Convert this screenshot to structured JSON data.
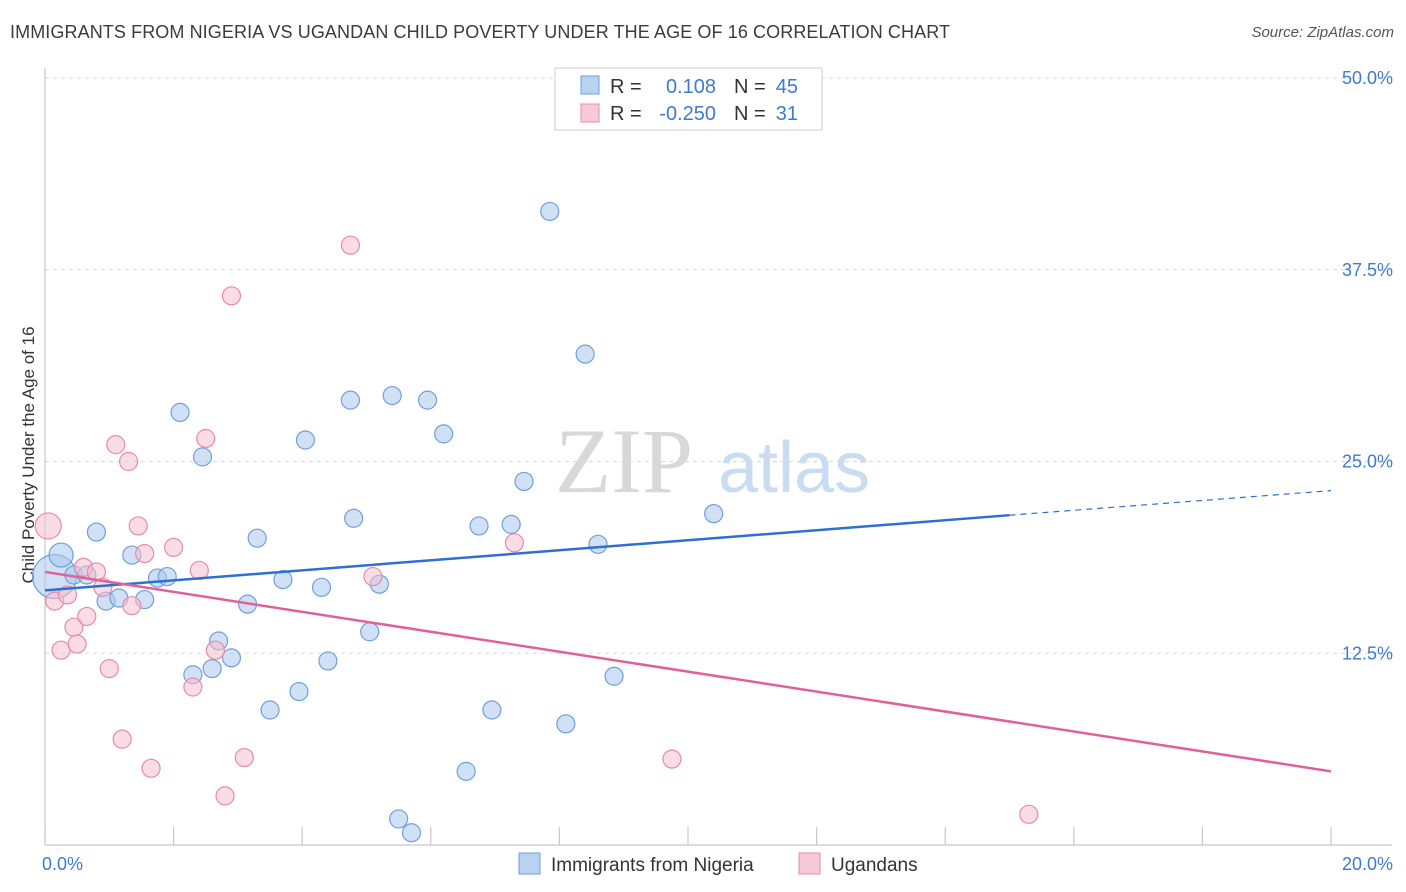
{
  "title": "IMMIGRANTS FROM NIGERIA VS UGANDAN CHILD POVERTY UNDER THE AGE OF 16 CORRELATION CHART",
  "source": "Source: ZipAtlas.com",
  "watermark": {
    "zip": "ZIP",
    "atlas": "atlas"
  },
  "legend": {
    "rows": [
      {
        "r_label": "R =",
        "r_value": "0.108",
        "n_label": "N =",
        "n_value": "45"
      },
      {
        "r_label": "R =",
        "r_value": "-0.250",
        "n_label": "N =",
        "n_value": "31"
      }
    ]
  },
  "colors": {
    "blue_fill": "#a9c8ef",
    "blue_stroke": "#6f9fdc",
    "blue_line": "#2f6fd0",
    "pink_fill": "#f6bfd0",
    "pink_stroke": "#e88aa9",
    "pink_line": "#e0609a",
    "axis_text": "#3f7ad0",
    "grid": "#d8d8d8"
  },
  "chart_data": {
    "type": "scatter",
    "title": "IMMIGRANTS FROM NIGERIA VS UGANDAN CHILD POVERTY UNDER THE AGE OF 16 CORRELATION CHART",
    "xlabel": "",
    "ylabel": "Child Poverty Under the Age of 16",
    "xlim": [
      0,
      20
    ],
    "ylim": [
      0,
      50
    ],
    "x_tick_labels": [
      "0.0%",
      "20.0%"
    ],
    "y_ticks": [
      12.5,
      25.0,
      37.5,
      50.0
    ],
    "y_tick_labels": [
      "12.5%",
      "25.0%",
      "37.5%",
      "50.0%"
    ],
    "series": [
      {
        "name": "Immigrants from Nigeria",
        "color": "blue",
        "R": 0.108,
        "N": 45,
        "trend": {
          "x0": 0,
          "y0": 16.6,
          "x1": 15.0,
          "y1": 21.5,
          "dash_to_x": 20.0,
          "dash_to_y": 23.1
        },
        "points": [
          [
            0.15,
            17.5,
            22
          ],
          [
            0.25,
            18.9,
            12
          ],
          [
            0.45,
            17.6,
            9
          ],
          [
            0.65,
            17.6,
            9
          ],
          [
            0.8,
            20.4,
            9
          ],
          [
            0.95,
            15.9,
            9
          ],
          [
            1.15,
            16.1,
            9
          ],
          [
            1.35,
            18.9,
            9
          ],
          [
            1.55,
            16.0,
            9
          ],
          [
            1.75,
            17.4,
            9
          ],
          [
            1.9,
            17.5,
            9
          ],
          [
            2.1,
            28.2,
            9
          ],
          [
            2.3,
            11.1,
            9
          ],
          [
            2.45,
            25.3,
            9
          ],
          [
            2.6,
            11.5,
            9
          ],
          [
            2.7,
            13.3,
            9
          ],
          [
            2.9,
            12.2,
            9
          ],
          [
            3.15,
            15.7,
            9
          ],
          [
            3.3,
            20.0,
            9
          ],
          [
            3.5,
            8.8,
            9
          ],
          [
            3.7,
            17.3,
            9
          ],
          [
            3.95,
            10.0,
            9
          ],
          [
            4.05,
            26.4,
            9
          ],
          [
            4.3,
            16.8,
            9
          ],
          [
            4.4,
            12.0,
            9
          ],
          [
            4.75,
            29.0,
            9
          ],
          [
            4.8,
            21.3,
            9
          ],
          [
            5.05,
            13.9,
            9
          ],
          [
            5.2,
            17.0,
            9
          ],
          [
            5.4,
            29.3,
            9
          ],
          [
            5.5,
            1.7,
            9
          ],
          [
            5.7,
            0.8,
            9
          ],
          [
            5.95,
            29.0,
            9
          ],
          [
            6.2,
            26.8,
            9
          ],
          [
            6.55,
            4.8,
            9
          ],
          [
            6.75,
            20.8,
            9
          ],
          [
            6.95,
            8.8,
            9
          ],
          [
            7.25,
            20.9,
            9
          ],
          [
            7.45,
            23.7,
            9
          ],
          [
            7.85,
            41.3,
            9
          ],
          [
            8.1,
            7.9,
            9
          ],
          [
            8.4,
            32.0,
            9
          ],
          [
            8.6,
            19.6,
            9
          ],
          [
            8.85,
            11.0,
            9
          ],
          [
            10.4,
            21.6,
            9
          ]
        ]
      },
      {
        "name": "Ugandans",
        "color": "pink",
        "R": -0.25,
        "N": 31,
        "trend": {
          "x0": 0,
          "y0": 17.8,
          "x1": 20.0,
          "y1": 4.8
        },
        "points": [
          [
            0.05,
            20.8,
            13
          ],
          [
            0.15,
            15.9,
            9
          ],
          [
            0.25,
            12.7,
            9
          ],
          [
            0.35,
            16.3,
            9
          ],
          [
            0.45,
            14.2,
            9
          ],
          [
            0.5,
            13.1,
            9
          ],
          [
            0.6,
            18.1,
            9
          ],
          [
            0.65,
            14.9,
            9
          ],
          [
            0.8,
            17.8,
            9
          ],
          [
            0.9,
            16.8,
            9
          ],
          [
            1.0,
            11.5,
            9
          ],
          [
            1.1,
            26.1,
            9
          ],
          [
            1.2,
            6.9,
            9
          ],
          [
            1.3,
            25.0,
            9
          ],
          [
            1.35,
            15.6,
            9
          ],
          [
            1.45,
            20.8,
            9
          ],
          [
            1.55,
            19.0,
            9
          ],
          [
            1.65,
            5.0,
            9
          ],
          [
            2.0,
            19.4,
            9
          ],
          [
            2.3,
            10.3,
            9
          ],
          [
            2.4,
            17.9,
            9
          ],
          [
            2.5,
            26.5,
            9
          ],
          [
            2.65,
            12.7,
            9
          ],
          [
            2.8,
            3.2,
            9
          ],
          [
            2.9,
            35.8,
            9
          ],
          [
            3.1,
            5.7,
            9
          ],
          [
            4.75,
            39.1,
            9
          ],
          [
            5.1,
            17.5,
            9
          ],
          [
            7.3,
            19.7,
            9
          ],
          [
            9.75,
            5.6,
            9
          ],
          [
            15.3,
            2.0,
            9
          ]
        ]
      }
    ]
  },
  "bottom_legend": [
    "Immigrants from Nigeria",
    "Ugandans"
  ]
}
